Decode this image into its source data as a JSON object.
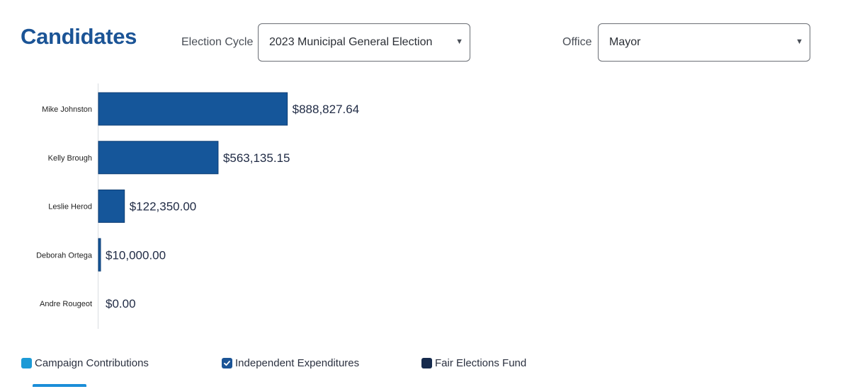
{
  "page": {
    "title": "Candidates"
  },
  "filters": {
    "election_cycle": {
      "label": "Election Cycle",
      "value": "2023 Municipal General Election"
    },
    "office": {
      "label": "Office",
      "value": "Mayor"
    }
  },
  "colors": {
    "title": "#1b5496",
    "bar": "#15569a",
    "bar_stroke": "#0f3f75",
    "axis": "#d9dce1",
    "campaign_contributions": "#1c9ad6",
    "independent_expenditures": "#1b5496",
    "fair_elections_fund": "#152a4d"
  },
  "chart_data": {
    "type": "bar",
    "orientation": "horizontal",
    "categories": [
      "Mike Johnston",
      "Kelly Brough",
      "Leslie Herod",
      "Deborah Ortega",
      "Andre Rougeot"
    ],
    "values": [
      888827.64,
      563135.15,
      122350.0,
      10000.0,
      0.0
    ],
    "value_labels": [
      "$888,827.64",
      "$563,135.15",
      "$122,350.00",
      "$10,000.00",
      "$0.00"
    ],
    "series": [
      {
        "name": "Independent Expenditures",
        "values": [
          888827.64,
          563135.15,
          122350.0,
          10000.0,
          0.0
        ]
      }
    ],
    "xlim": [
      0,
      3000000
    ],
    "grid": false
  },
  "legend": [
    {
      "label": "Campaign Contributions",
      "checked": false,
      "color": "#1c9ad6"
    },
    {
      "label": "Independent Expenditures",
      "checked": true,
      "color": "#1b5496"
    },
    {
      "label": "Fair Elections Fund",
      "checked": false,
      "color": "#152a4d"
    }
  ]
}
